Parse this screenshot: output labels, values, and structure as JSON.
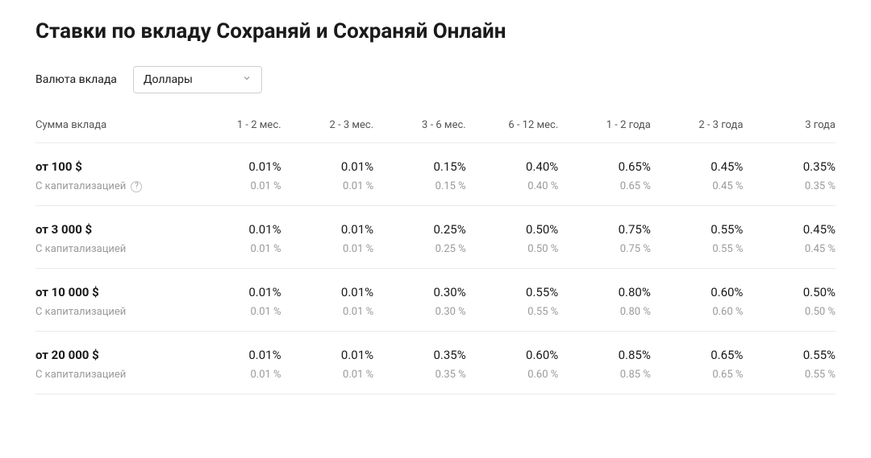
{
  "title": "Ставки по вкладу Сохраняй и Сохраняй Онлайн",
  "filter": {
    "label": "Валюта вклада",
    "selected": "Доллары"
  },
  "table": {
    "firstColHeader": "Сумма вклада",
    "periods": [
      "1 - 2 мес.",
      "2 - 3 мес.",
      "3 - 6 мес.",
      "6 - 12 мес.",
      "1 - 2 года",
      "2 - 3 года",
      "3 года"
    ],
    "capitalizationLabel": "С капитализацией",
    "rows": [
      {
        "amountLabel": "от 100 $",
        "showHelp": true,
        "main": [
          "0.01%",
          "0.01%",
          "0.15%",
          "0.40%",
          "0.65%",
          "0.45%",
          "0.35%"
        ],
        "cap": [
          "0.01 %",
          "0.01 %",
          "0.15 %",
          "0.40 %",
          "0.65 %",
          "0.45 %",
          "0.35 %"
        ]
      },
      {
        "amountLabel": "от 3 000 $",
        "showHelp": false,
        "main": [
          "0.01%",
          "0.01%",
          "0.25%",
          "0.50%",
          "0.75%",
          "0.55%",
          "0.45%"
        ],
        "cap": [
          "0.01 %",
          "0.01 %",
          "0.25 %",
          "0.50 %",
          "0.75 %",
          "0.55 %",
          "0.45 %"
        ]
      },
      {
        "amountLabel": "от 10 000 $",
        "showHelp": false,
        "main": [
          "0.01%",
          "0.01%",
          "0.30%",
          "0.55%",
          "0.80%",
          "0.60%",
          "0.50%"
        ],
        "cap": [
          "0.01 %",
          "0.01 %",
          "0.30 %",
          "0.55 %",
          "0.80 %",
          "0.60 %",
          "0.50 %"
        ]
      },
      {
        "amountLabel": "от 20 000 $",
        "showHelp": false,
        "main": [
          "0.01%",
          "0.01%",
          "0.35%",
          "0.60%",
          "0.85%",
          "0.65%",
          "0.55%"
        ],
        "cap": [
          "0.01 %",
          "0.01 %",
          "0.35 %",
          "0.60 %",
          "0.85 %",
          "0.65 %",
          "0.55 %"
        ]
      }
    ]
  },
  "colors": {
    "text": "#1a1a1a",
    "muted": "#9a9a9a",
    "border": "#eaeaea",
    "selectBorder": "#cfcfcf",
    "background": "#ffffff"
  }
}
